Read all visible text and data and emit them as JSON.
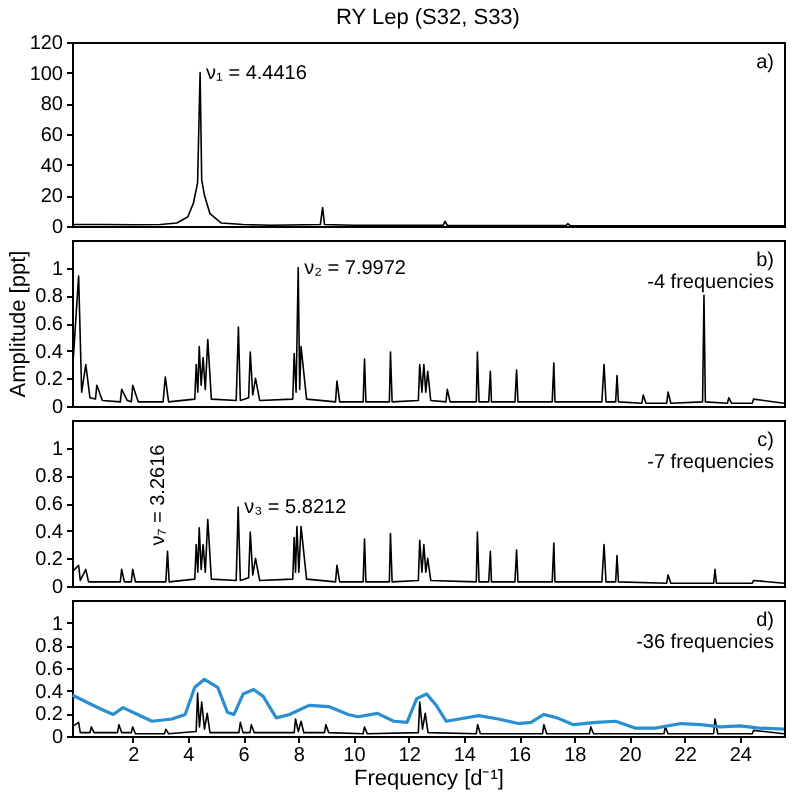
{
  "chart_data": [
    {
      "type": "line",
      "title": "RY Lep (S32, S33)",
      "xlim": [
        -0.2,
        25.6
      ],
      "ylim": [
        0,
        120
      ],
      "yticks": [
        0,
        20,
        40,
        60,
        80,
        100,
        120
      ],
      "tick_labels": "y",
      "annotations": [
        "a)",
        {
          "text": "ν₁ = 4.4416",
          "x": 4.4416,
          "y": 100
        }
      ],
      "series": [
        {
          "color": "#000000",
          "x": [
            -0.2,
            1,
            2,
            3,
            3.6,
            4.0,
            4.2,
            4.35,
            4.4416,
            4.5,
            4.6,
            4.8,
            5.2,
            6,
            7,
            8.8,
            8.88,
            8.95,
            10,
            13.25,
            13.32,
            13.4,
            15,
            17.7,
            17.77,
            17.85,
            20,
            25.6
          ],
          "values": [
            1,
            1,
            0.8,
            1,
            2,
            6,
            15,
            28,
            100,
            30,
            20,
            8,
            2,
            1,
            0.5,
            1,
            12,
            1,
            0.5,
            0.5,
            3,
            0.5,
            0.3,
            0.3,
            1.5,
            0.3,
            0.2,
            0.2
          ]
        }
      ]
    },
    {
      "type": "line",
      "ylabel": "Amplitude [ppt]",
      "xlim": [
        -0.2,
        25.6
      ],
      "ylim": [
        0,
        1.2
      ],
      "yticks": [
        0,
        0.2,
        0.4,
        0.6,
        0.8,
        1
      ],
      "tick_labels": "y",
      "annotations": [
        "b)",
        "-4 frequencies",
        {
          "text": "ν₂ = 7.9972",
          "x": 7.9972,
          "y": 1.0
        }
      ],
      "series": [
        {
          "color": "#000000",
          "x": [
            -0.2,
            0.04,
            0.15,
            0.3,
            0.45,
            0.65,
            0.7,
            0.9,
            1.55,
            1.6,
            1.8,
            1.95,
            2.0,
            2.2,
            3.1,
            3.18,
            3.3,
            4.25,
            4.3,
            4.36,
            4.41,
            4.48,
            4.55,
            4.63,
            4.72,
            4.85,
            5.75,
            5.83,
            5.9,
            6.2,
            6.26,
            6.35,
            6.45,
            6.6,
            7.8,
            7.85,
            7.92,
            7.9972,
            8.05,
            8.1,
            8.3,
            9.35,
            9.4,
            9.5,
            10.35,
            10.4,
            10.45,
            11.3,
            11.34,
            11.4,
            12.35,
            12.4,
            12.48,
            12.55,
            12.62,
            12.69,
            12.8,
            13.35,
            13.4,
            13.5,
            14.45,
            14.49,
            14.55,
            14.9,
            14.96,
            15.0,
            15.85,
            15.91,
            15.96,
            17.2,
            17.26,
            17.3,
            19.0,
            19.08,
            19.15,
            19.5,
            19.55,
            19.6,
            20.45,
            20.5,
            20.6,
            21.35,
            21.4,
            21.5,
            22.65,
            22.7,
            22.75,
            23.55,
            23.6,
            23.7,
            24.45,
            24.5,
            25.6
          ],
          "values": [
            0.2,
            0.94,
            0.1,
            0.3,
            0.06,
            0.05,
            0.15,
            0.04,
            0.03,
            0.12,
            0.04,
            0.03,
            0.15,
            0.03,
            0.03,
            0.21,
            0.03,
            0.05,
            0.3,
            0.1,
            0.43,
            0.15,
            0.35,
            0.12,
            0.48,
            0.05,
            0.04,
            0.57,
            0.04,
            0.06,
            0.39,
            0.08,
            0.2,
            0.04,
            0.05,
            0.38,
            0.1,
            1.0,
            0.12,
            0.43,
            0.05,
            0.03,
            0.18,
            0.03,
            0.03,
            0.34,
            0.03,
            0.03,
            0.39,
            0.03,
            0.04,
            0.3,
            0.1,
            0.3,
            0.1,
            0.25,
            0.04,
            0.03,
            0.12,
            0.03,
            0.03,
            0.39,
            0.03,
            0.03,
            0.25,
            0.03,
            0.03,
            0.26,
            0.03,
            0.03,
            0.31,
            0.03,
            0.03,
            0.3,
            0.03,
            0.03,
            0.22,
            0.03,
            0.02,
            0.08,
            0.02,
            0.02,
            0.1,
            0.02,
            0.03,
            0.8,
            0.03,
            0.02,
            0.06,
            0.02,
            0.02,
            0.05,
            0.02
          ]
        }
      ]
    },
    {
      "type": "line",
      "xlim": [
        -0.2,
        25.6
      ],
      "ylim": [
        0,
        1.2
      ],
      "yticks": [
        0,
        0.2,
        0.4,
        0.6,
        0.8,
        1
      ],
      "tick_labels": "y",
      "annotations": [
        "c)",
        "-7 frequencies",
        {
          "text": "ν₇ = 3.2616",
          "x": 3.2616,
          "y": 0.25
        },
        {
          "text": "ν₃ = 5.8212",
          "x": 5.8212,
          "y": 0.57
        }
      ],
      "series": [
        {
          "color": "#000000",
          "x": [
            -0.2,
            0.04,
            0.1,
            0.3,
            0.4,
            1.55,
            1.6,
            1.7,
            1.95,
            2.0,
            2.1,
            3.2,
            3.2616,
            3.32,
            4.25,
            4.3,
            4.36,
            4.41,
            4.48,
            4.55,
            4.63,
            4.72,
            4.85,
            5.75,
            5.8212,
            5.9,
            6.2,
            6.26,
            6.35,
            6.45,
            6.6,
            7.8,
            7.85,
            7.9,
            7.95,
            8.02,
            8.1,
            8.3,
            9.35,
            9.4,
            9.5,
            10.35,
            10.4,
            10.45,
            11.3,
            11.34,
            11.4,
            12.35,
            12.4,
            12.48,
            12.55,
            12.62,
            12.69,
            12.8,
            14.45,
            14.49,
            14.55,
            14.9,
            14.96,
            15.0,
            15.85,
            15.91,
            15.96,
            17.2,
            17.26,
            17.3,
            19.0,
            19.08,
            19.15,
            19.5,
            19.55,
            19.6,
            21.35,
            21.4,
            21.5,
            23.05,
            23.1,
            23.15,
            24.45,
            24.5,
            25.6
          ],
          "values": [
            0.1,
            0.15,
            0.04,
            0.12,
            0.03,
            0.03,
            0.12,
            0.03,
            0.03,
            0.12,
            0.03,
            0.03,
            0.25,
            0.03,
            0.05,
            0.3,
            0.1,
            0.42,
            0.12,
            0.3,
            0.1,
            0.48,
            0.05,
            0.04,
            0.57,
            0.04,
            0.06,
            0.39,
            0.08,
            0.2,
            0.04,
            0.05,
            0.35,
            0.1,
            0.43,
            0.1,
            0.43,
            0.05,
            0.03,
            0.15,
            0.03,
            0.03,
            0.34,
            0.03,
            0.03,
            0.38,
            0.03,
            0.04,
            0.33,
            0.1,
            0.3,
            0.1,
            0.2,
            0.04,
            0.03,
            0.39,
            0.03,
            0.03,
            0.25,
            0.03,
            0.03,
            0.26,
            0.03,
            0.03,
            0.31,
            0.03,
            0.03,
            0.3,
            0.03,
            0.03,
            0.22,
            0.03,
            0.02,
            0.08,
            0.02,
            0.02,
            0.12,
            0.02,
            0.02,
            0.04,
            0.02
          ]
        }
      ]
    },
    {
      "type": "line",
      "xlabel": "Frequency [d⁻¹]",
      "xlim": [
        -0.2,
        25.6
      ],
      "xticks": [
        2,
        4,
        6,
        8,
        10,
        12,
        14,
        16,
        18,
        20,
        22,
        24
      ],
      "ylim": [
        0,
        1.2
      ],
      "yticks": [
        0,
        0.2,
        0.4,
        0.6,
        0.8,
        1
      ],
      "annotations": [
        "d)",
        "-36 frequencies"
      ],
      "series": [
        {
          "color": "#000000",
          "x": [
            -0.2,
            0.04,
            0.1,
            0.45,
            0.5,
            0.6,
            1.45,
            1.5,
            1.6,
            1.95,
            2.0,
            2.1,
            3.15,
            3.2,
            3.3,
            4.3,
            4.35,
            4.42,
            4.5,
            4.6,
            4.7,
            4.8,
            5.85,
            5.9,
            6.0,
            6.25,
            6.3,
            6.4,
            7.85,
            7.9,
            8.0,
            8.1,
            8.2,
            8.95,
            9.0,
            9.1,
            10.35,
            10.4,
            10.5,
            12.35,
            12.4,
            12.5,
            12.6,
            12.7,
            14.45,
            14.5,
            14.6,
            16.85,
            16.9,
            17.0,
            18.55,
            18.6,
            18.7,
            21.25,
            21.3,
            21.4,
            23.05,
            23.1,
            23.2,
            24.45,
            24.5,
            25.6
          ],
          "values": [
            0.08,
            0.12,
            0.03,
            0.03,
            0.08,
            0.03,
            0.03,
            0.1,
            0.03,
            0.03,
            0.08,
            0.02,
            0.02,
            0.06,
            0.02,
            0.04,
            0.38,
            0.08,
            0.3,
            0.06,
            0.2,
            0.03,
            0.03,
            0.12,
            0.03,
            0.03,
            0.1,
            0.03,
            0.03,
            0.15,
            0.04,
            0.13,
            0.03,
            0.03,
            0.1,
            0.03,
            0.02,
            0.08,
            0.02,
            0.03,
            0.3,
            0.06,
            0.2,
            0.03,
            0.02,
            0.1,
            0.02,
            0.02,
            0.1,
            0.02,
            0.02,
            0.08,
            0.02,
            0.02,
            0.08,
            0.02,
            0.02,
            0.15,
            0.02,
            0.02,
            0.05,
            0.02
          ]
        },
        {
          "color": "#2a8fd0",
          "x": [
            -0.18,
            0.82,
            1.29,
            1.65,
            2,
            2.7,
            3.42,
            3.9,
            4.25,
            4.6,
            5.08,
            5.43,
            5.67,
            6.0,
            6.38,
            6.73,
            7.2,
            7.68,
            8.39,
            9.1,
            9.81,
            10.16,
            10.87,
            11.46,
            11.94,
            12.29,
            12.65,
            13.0,
            13.36,
            13.83,
            14.54,
            15.25,
            15.96,
            16.43,
            16.9,
            17.38,
            17.97,
            18.8,
            19.5,
            20.2,
            20.93,
            21.87,
            22.58,
            23.3,
            24.0,
            24.7,
            25.6
          ],
          "values": [
            0.36,
            0.24,
            0.19,
            0.25,
            0.21,
            0.13,
            0.15,
            0.19,
            0.43,
            0.5,
            0.43,
            0.21,
            0.19,
            0.37,
            0.41,
            0.35,
            0.16,
            0.19,
            0.27,
            0.26,
            0.19,
            0.17,
            0.2,
            0.13,
            0.12,
            0.33,
            0.37,
            0.27,
            0.13,
            0.15,
            0.18,
            0.15,
            0.11,
            0.12,
            0.19,
            0.16,
            0.1,
            0.12,
            0.13,
            0.07,
            0.07,
            0.11,
            0.1,
            0.08,
            0.09,
            0.07,
            0.06
          ]
        }
      ]
    }
  ]
}
